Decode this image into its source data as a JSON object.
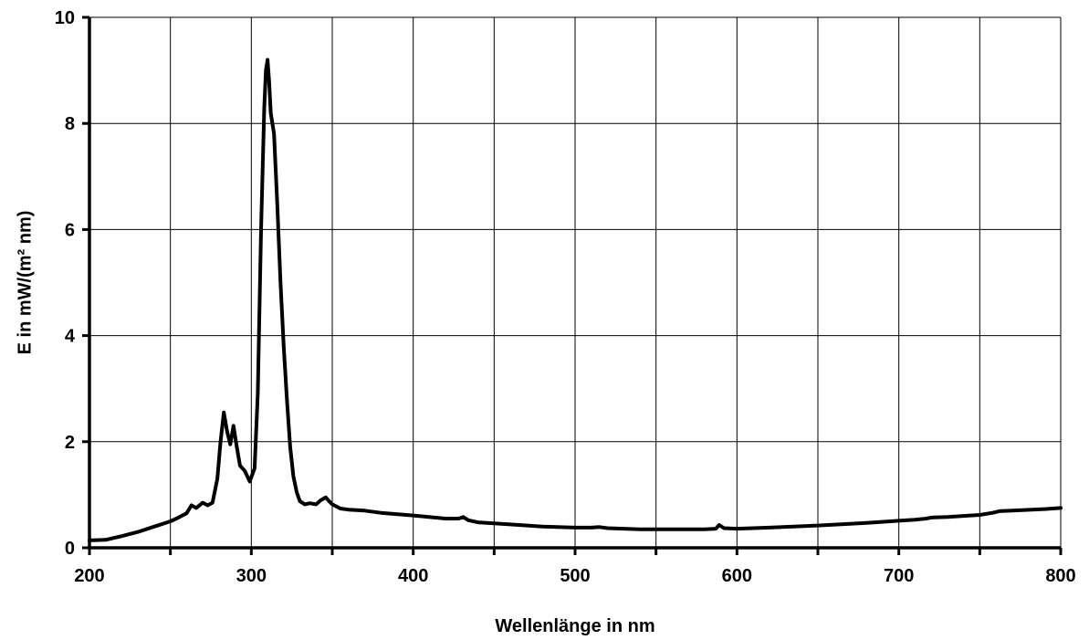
{
  "chart_data": {
    "type": "line",
    "title": "",
    "xlabel": "Wellenlänge in nm",
    "ylabel": "E in mW/(m² nm)",
    "xlim": [
      200,
      800
    ],
    "ylim": [
      0,
      10
    ],
    "x_ticks": [
      200,
      300,
      400,
      500,
      600,
      700,
      800
    ],
    "x_tick_labels": [
      "200",
      "300",
      "400",
      "500",
      "600",
      "700",
      "800"
    ],
    "y_ticks": [
      0,
      2,
      4,
      6,
      8,
      10
    ],
    "y_tick_labels": [
      "0",
      "2",
      "4",
      "6",
      "8",
      "10"
    ],
    "grid": true,
    "series": [
      {
        "color": "#000000",
        "x": [
          200,
          210,
          220,
          230,
          240,
          250,
          255,
          260,
          263,
          266,
          270,
          273,
          276,
          279,
          281,
          283,
          285,
          287,
          289,
          291,
          293,
          296,
          299,
          302,
          304,
          306,
          308,
          309,
          310,
          311,
          312,
          314,
          316,
          318,
          320,
          322,
          324,
          326,
          328,
          330,
          333,
          336,
          340,
          343,
          346,
          348,
          350,
          355,
          360,
          370,
          380,
          400,
          420,
          428,
          431,
          434,
          440,
          460,
          480,
          500,
          510,
          515,
          520,
          540,
          560,
          580,
          587,
          589,
          592,
          600,
          620,
          650,
          680,
          700,
          710,
          717,
          720,
          730,
          750,
          758,
          762,
          770,
          790,
          800
        ],
        "values": [
          0.14,
          0.15,
          0.22,
          0.3,
          0.4,
          0.5,
          0.57,
          0.65,
          0.8,
          0.75,
          0.85,
          0.8,
          0.85,
          1.3,
          2.0,
          2.55,
          2.2,
          1.95,
          2.3,
          1.9,
          1.55,
          1.45,
          1.25,
          1.5,
          2.9,
          6.0,
          8.3,
          9.0,
          9.2,
          8.8,
          8.2,
          7.8,
          6.5,
          5.0,
          3.8,
          2.8,
          1.9,
          1.35,
          1.05,
          0.88,
          0.82,
          0.84,
          0.82,
          0.9,
          0.95,
          0.88,
          0.82,
          0.74,
          0.72,
          0.7,
          0.66,
          0.61,
          0.55,
          0.55,
          0.58,
          0.52,
          0.48,
          0.44,
          0.4,
          0.38,
          0.38,
          0.39,
          0.37,
          0.35,
          0.35,
          0.35,
          0.36,
          0.43,
          0.37,
          0.36,
          0.38,
          0.42,
          0.47,
          0.51,
          0.53,
          0.55,
          0.57,
          0.58,
          0.62,
          0.66,
          0.69,
          0.7,
          0.73,
          0.75
        ]
      }
    ]
  }
}
